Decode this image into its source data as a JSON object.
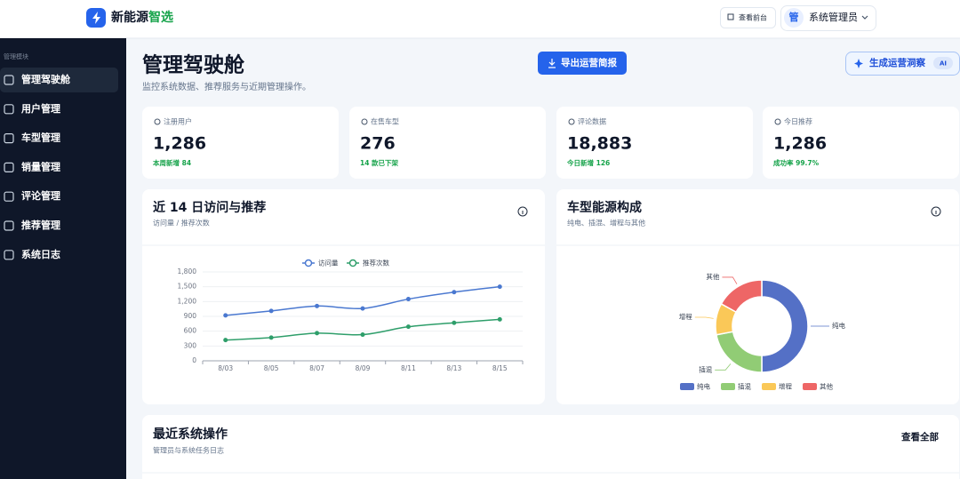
{
  "header": {
    "brand": "新能源",
    "brand_accent": "智选",
    "view_site": "查看前台",
    "avatar": "管",
    "user": "系统管理员"
  },
  "sidebar": {
    "section": "管理模块",
    "items": [
      "管理驾驶舱",
      "用户管理",
      "车型管理",
      "销量管理",
      "评论管理",
      "推荐管理",
      "系统日志"
    ]
  },
  "page": {
    "title": "管理驾驶舱",
    "subtitle": "监控系统数据、推荐服务与近期管理操作。",
    "export_button": "导出运营简报",
    "insight_button": "生成运营洞察",
    "insight_badge": "AI"
  },
  "stats": [
    {
      "label": "注册用户",
      "value": "1,286",
      "note": "本周新增 84"
    },
    {
      "label": "在售车型",
      "value": "276",
      "note": "14 款已下架"
    },
    {
      "label": "评论数据",
      "value": "18,883",
      "note": "今日新增 126"
    },
    {
      "label": "今日推荐",
      "value": "1,286",
      "note": "成功率 99.7%"
    }
  ],
  "chart_data": [
    {
      "type": "line",
      "title": "近 14 日访问与推荐",
      "subtitle": "访问量 / 推荐次数",
      "categories": [
        "8/03",
        "8/05",
        "8/07",
        "8/09",
        "8/11",
        "8/13",
        "8/15"
      ],
      "series": [
        {
          "name": "访问量",
          "color": "#4a78d0",
          "values": [
            920,
            1010,
            1110,
            1060,
            1250,
            1390,
            1500
          ]
        },
        {
          "name": "推荐次数",
          "color": "#2e9e6a",
          "values": [
            420,
            470,
            560,
            530,
            690,
            770,
            840
          ]
        }
      ],
      "ylim": [
        0,
        1800
      ],
      "yticks": [
        0,
        300,
        600,
        900,
        {
          "value": 1200,
          "label": "1,200"
        },
        {
          "value": 1500,
          "label": "1,500"
        },
        {
          "value": 1800,
          "label": "1,800"
        }
      ],
      "grid": true
    },
    {
      "type": "pie",
      "title": "车型能源构成",
      "subtitle": "纯电、插混、增程与其他",
      "categories": [
        "纯电",
        "插混",
        "增程",
        "其他"
      ],
      "values": [
        50,
        22,
        11,
        17
      ],
      "colors": [
        "#5470c6",
        "#91cc75",
        "#fac858",
        "#ee6666"
      ],
      "donut": true
    }
  ],
  "recent": {
    "title": "最近系统操作",
    "subtitle": "管理员与系统任务日志",
    "view_all": "查看全部"
  }
}
